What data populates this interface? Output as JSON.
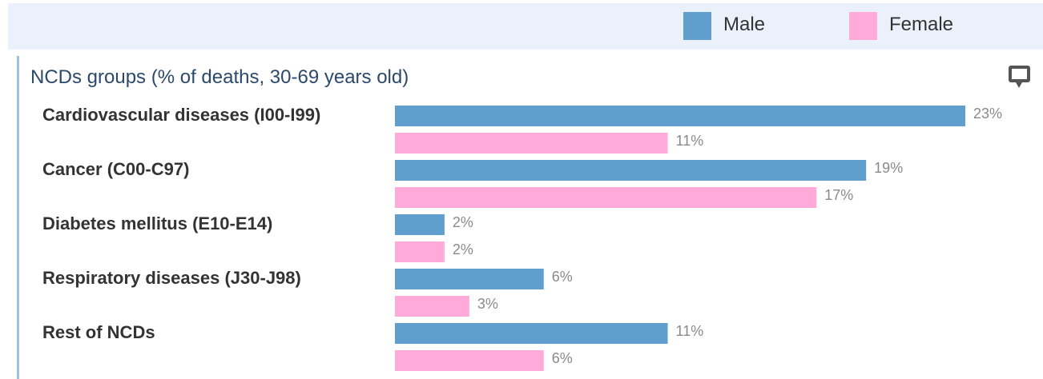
{
  "chart_data": {
    "type": "hbar",
    "title": "NCDs groups (% of deaths, 30-69 years old)",
    "categories": [
      "Cardiovascular diseases (I00-I99)",
      "Cancer (C00-C97)",
      "Diabetes mellitus (E10-E14)",
      "Respiratory diseases (J30-J98)",
      "Rest of NCDs"
    ],
    "series": [
      {
        "name": "Male",
        "color": "#609fcd",
        "values": [
          23,
          19,
          2,
          6,
          11
        ],
        "value_labels": [
          "23%",
          "19%",
          "2%",
          "6%",
          "11%"
        ]
      },
      {
        "name": "Female",
        "color": "#ffaad8",
        "values": [
          11,
          17,
          2,
          3,
          6
        ],
        "value_labels": [
          "11%",
          "17%",
          "2%",
          "3%",
          "6%"
        ]
      }
    ]
  }
}
